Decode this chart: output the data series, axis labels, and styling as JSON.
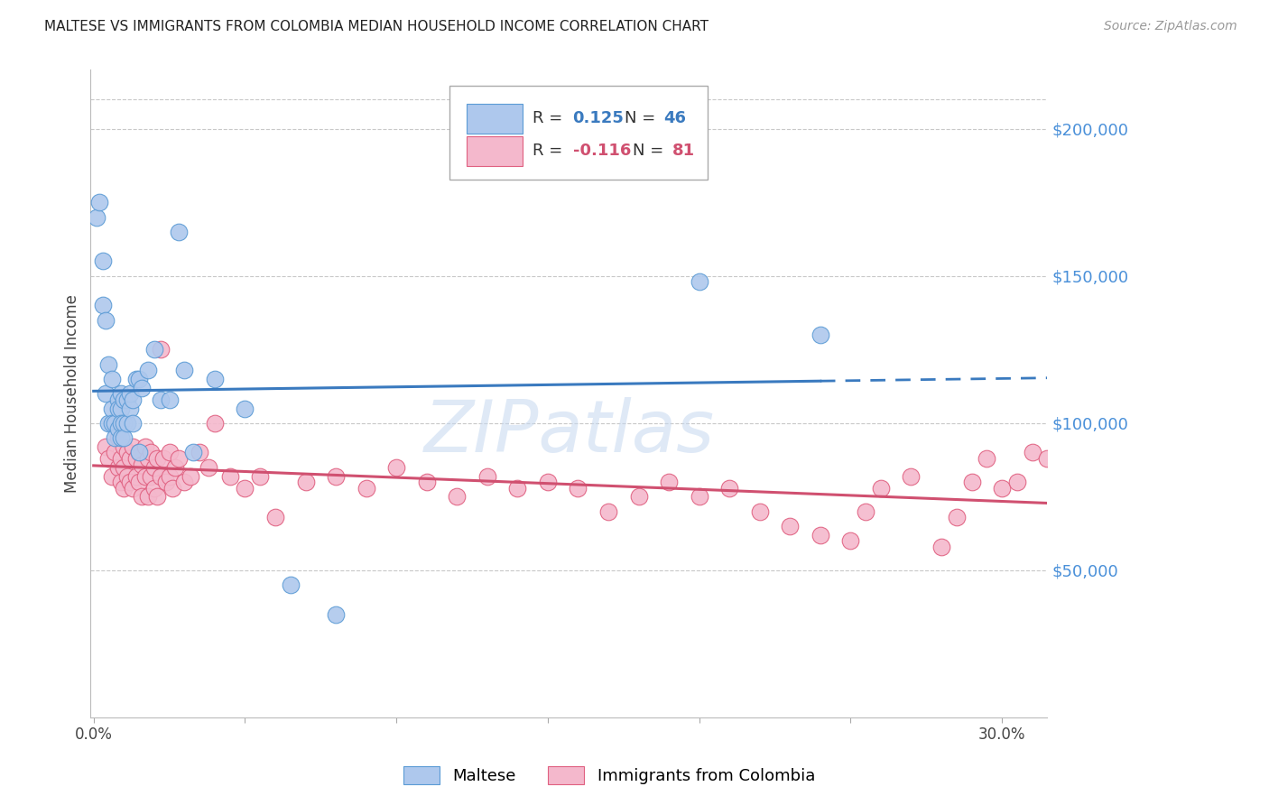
{
  "title": "MALTESE VS IMMIGRANTS FROM COLOMBIA MEDIAN HOUSEHOLD INCOME CORRELATION CHART",
  "source": "Source: ZipAtlas.com",
  "ylabel": "Median Household Income",
  "ytick_labels": [
    "$50,000",
    "$100,000",
    "$150,000",
    "$200,000"
  ],
  "ytick_values": [
    50000,
    100000,
    150000,
    200000
  ],
  "ylim": [
    0,
    220000
  ],
  "xlim": [
    -0.001,
    0.315
  ],
  "series1_label": "Maltese",
  "series2_label": "Immigrants from Colombia",
  "series1_color": "#aec8ed",
  "series1_edge_color": "#5b9bd5",
  "series2_color": "#f4b8cc",
  "series2_edge_color": "#e06080",
  "line1_color": "#3a7abf",
  "line2_color": "#d05070",
  "background_color": "#ffffff",
  "grid_color": "#c8c8c8",
  "title_color": "#222222",
  "axis_label_color": "#444444",
  "right_ytick_color": "#4a90d9",
  "watermark": "ZIPatlas",
  "series1_x": [
    0.001,
    0.002,
    0.003,
    0.003,
    0.004,
    0.004,
    0.005,
    0.005,
    0.006,
    0.006,
    0.006,
    0.007,
    0.007,
    0.008,
    0.008,
    0.008,
    0.009,
    0.009,
    0.009,
    0.009,
    0.01,
    0.01,
    0.01,
    0.011,
    0.011,
    0.012,
    0.012,
    0.013,
    0.013,
    0.014,
    0.015,
    0.015,
    0.016,
    0.018,
    0.02,
    0.022,
    0.025,
    0.028,
    0.03,
    0.033,
    0.04,
    0.05,
    0.065,
    0.08,
    0.2,
    0.24
  ],
  "series1_y": [
    170000,
    175000,
    155000,
    140000,
    135000,
    110000,
    120000,
    100000,
    115000,
    105000,
    100000,
    100000,
    95000,
    108000,
    105000,
    98000,
    110000,
    105000,
    100000,
    95000,
    108000,
    100000,
    95000,
    108000,
    100000,
    105000,
    110000,
    108000,
    100000,
    115000,
    115000,
    90000,
    112000,
    118000,
    125000,
    108000,
    108000,
    165000,
    118000,
    90000,
    115000,
    105000,
    45000,
    35000,
    148000,
    130000
  ],
  "series2_x": [
    0.004,
    0.005,
    0.006,
    0.007,
    0.008,
    0.008,
    0.009,
    0.009,
    0.01,
    0.01,
    0.01,
    0.011,
    0.011,
    0.012,
    0.012,
    0.013,
    0.013,
    0.014,
    0.014,
    0.015,
    0.015,
    0.016,
    0.016,
    0.017,
    0.017,
    0.018,
    0.018,
    0.019,
    0.019,
    0.02,
    0.02,
    0.021,
    0.021,
    0.022,
    0.022,
    0.023,
    0.024,
    0.025,
    0.025,
    0.026,
    0.027,
    0.028,
    0.03,
    0.032,
    0.035,
    0.038,
    0.04,
    0.045,
    0.05,
    0.055,
    0.06,
    0.07,
    0.08,
    0.09,
    0.1,
    0.11,
    0.12,
    0.13,
    0.14,
    0.15,
    0.16,
    0.17,
    0.18,
    0.19,
    0.2,
    0.21,
    0.22,
    0.23,
    0.24,
    0.25,
    0.255,
    0.26,
    0.27,
    0.28,
    0.285,
    0.29,
    0.295,
    0.3,
    0.305,
    0.31,
    0.315
  ],
  "series2_y": [
    92000,
    88000,
    82000,
    90000,
    95000,
    85000,
    88000,
    80000,
    92000,
    85000,
    78000,
    90000,
    82000,
    88000,
    80000,
    92000,
    78000,
    88000,
    82000,
    90000,
    80000,
    86000,
    75000,
    92000,
    82000,
    88000,
    75000,
    82000,
    90000,
    85000,
    78000,
    88000,
    75000,
    82000,
    125000,
    88000,
    80000,
    90000,
    82000,
    78000,
    85000,
    88000,
    80000,
    82000,
    90000,
    85000,
    100000,
    82000,
    78000,
    82000,
    68000,
    80000,
    82000,
    78000,
    85000,
    80000,
    75000,
    82000,
    78000,
    80000,
    78000,
    70000,
    75000,
    80000,
    75000,
    78000,
    70000,
    65000,
    62000,
    60000,
    70000,
    78000,
    82000,
    58000,
    68000,
    80000,
    88000,
    78000,
    80000,
    90000,
    88000
  ]
}
